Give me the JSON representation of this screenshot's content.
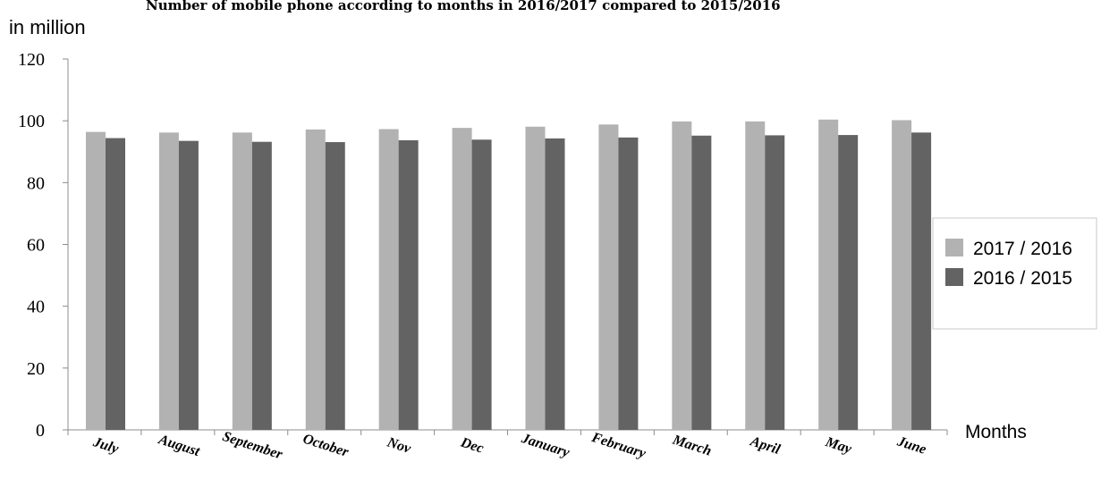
{
  "chart_data": {
    "type": "bar",
    "title": "Number of mobile phone  according to months in 2016/2017 compared to 2015/2016",
    "ylabel": "in million",
    "xlabel": "Months",
    "categories": [
      "July",
      "August",
      "September",
      "October",
      "Nov",
      "Dec",
      "January",
      "February",
      "March",
      "April",
      "May",
      "June"
    ],
    "series": [
      {
        "name": "2017 / 2016",
        "color": "#b2b2b2",
        "values": [
          96.4,
          96.2,
          96.2,
          97.2,
          97.3,
          97.7,
          98.1,
          98.8,
          99.8,
          99.8,
          100.4,
          100.2
        ]
      },
      {
        "name": "2016 / 2015",
        "color": "#636363",
        "values": [
          94.4,
          93.5,
          93.2,
          93.1,
          93.7,
          93.9,
          94.3,
          94.6,
          95.2,
          95.3,
          95.4,
          96.2
        ]
      }
    ],
    "ylim": [
      0,
      120
    ],
    "yticks": [
      "0",
      "20",
      "40",
      "60",
      "80",
      "100",
      "120"
    ],
    "grid": false,
    "legend_position": "right"
  }
}
